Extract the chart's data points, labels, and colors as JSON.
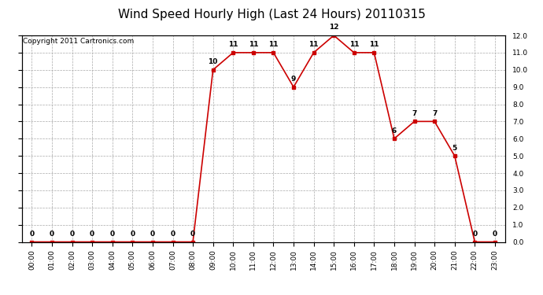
{
  "title": "Wind Speed Hourly High (Last 24 Hours) 20110315",
  "copyright": "Copyright 2011 Cartronics.com",
  "hours": [
    "00:00",
    "01:00",
    "02:00",
    "03:00",
    "04:00",
    "05:00",
    "06:00",
    "07:00",
    "08:00",
    "09:00",
    "10:00",
    "11:00",
    "12:00",
    "13:00",
    "14:00",
    "15:00",
    "16:00",
    "17:00",
    "18:00",
    "19:00",
    "20:00",
    "21:00",
    "22:00",
    "23:00"
  ],
  "values": [
    0,
    0,
    0,
    0,
    0,
    0,
    0,
    0,
    0,
    10,
    11,
    11,
    11,
    9,
    11,
    12,
    11,
    11,
    6,
    7,
    7,
    5,
    0,
    0
  ],
  "ylim": [
    0.0,
    12.0
  ],
  "yticks": [
    0.0,
    1.0,
    2.0,
    3.0,
    4.0,
    5.0,
    6.0,
    7.0,
    8.0,
    9.0,
    10.0,
    11.0,
    12.0
  ],
  "line_color": "#cc0000",
  "marker_color": "#cc0000",
  "grid_color": "#aaaaaa",
  "background_color": "#ffffff",
  "title_fontsize": 11,
  "copyright_fontsize": 6.5,
  "label_fontsize": 6.5,
  "tick_fontsize": 6.5
}
